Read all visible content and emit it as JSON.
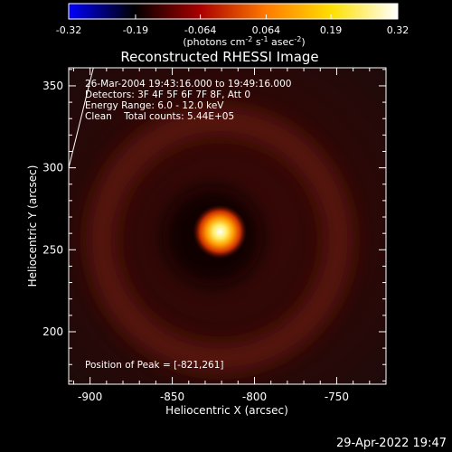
{
  "colorbar": {
    "ticks": [
      "-0.32",
      "-0.19",
      "-0.064",
      "0.064",
      "0.19",
      "0.32"
    ],
    "tick_values": [
      -0.32,
      -0.19,
      -0.064,
      0.064,
      0.19,
      0.32
    ],
    "unit_main": "(photons cm",
    "unit_exp1": "-2",
    "unit_mid": " s",
    "unit_exp2": "-1",
    "unit_mid2": " asec",
    "unit_exp3": "-2",
    "unit_close": ")",
    "colormap": [
      "#0000ff",
      "#000000",
      "#aa0000",
      "#ff7a00",
      "#ffe000",
      "#ffffff"
    ]
  },
  "title": "Reconstructed RHESSI Image",
  "info": {
    "line1": "26-Mar-2004 19:43:16.000 to 19:49:16.000",
    "line2": "Detectors: 3F 4F 5F 6F 7F 8F, Att 0",
    "line3": "Energy Range: 6.0 - 12.0 keV",
    "line4": "Clean    Total counts: 5.44E+05"
  },
  "peak_label": "Position of Peak = [-821,261]",
  "footer": "29-Apr-2022 19:47",
  "chart_data": {
    "type": "heatmap",
    "xlabel": "Heliocentric X (arcsec)",
    "ylabel": "Heliocentric Y (arcsec)",
    "xlim": [
      -913,
      -720
    ],
    "ylim": [
      168,
      361
    ],
    "x_ticks": [
      -900,
      -850,
      -800,
      -750
    ],
    "y_ticks": [
      200,
      250,
      300,
      350
    ],
    "x_tick_labels": [
      "-900",
      "-850",
      "-800",
      "-750"
    ],
    "y_tick_labels": [
      "200",
      "250",
      "300",
      "350"
    ],
    "peak": {
      "x": -821,
      "y": 261,
      "value": 0.32
    },
    "ring": {
      "center_x": -821,
      "center_y": 256,
      "radius": 72,
      "level": 0.05
    },
    "background_level": 0.02,
    "limb_line": [
      [
        -913,
        300
      ],
      [
        -898,
        361
      ]
    ]
  }
}
